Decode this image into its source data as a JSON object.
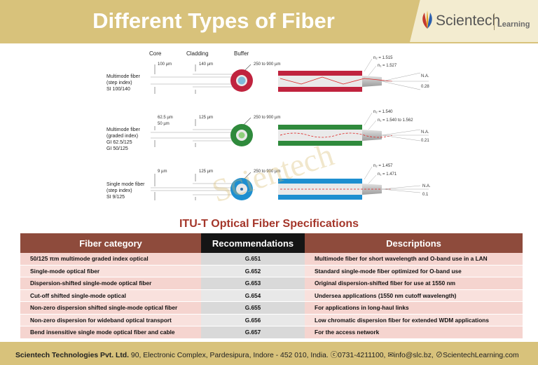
{
  "header": {
    "title": "Different Types of Fiber",
    "logo_name": "Scientech",
    "logo_sub": "Learning"
  },
  "diagram": {
    "col_core": "Core",
    "col_cladding": "Cladding",
    "col_buffer": "Buffer",
    "fibers": [
      {
        "name_lines": [
          "Multimode fiber",
          "(step index)",
          "SI 100/140"
        ],
        "core_dim": "100 µm",
        "cladding_dim": "140 µm",
        "buffer_dim": "250 to 900 µm",
        "n2": "n₂ = 1.515",
        "n1": "n₁ = 1.527",
        "na_label": "N.A.",
        "na_value": "0.28",
        "color": "#c0233e"
      },
      {
        "name_lines": [
          "Multimode fiber",
          "(graded index)",
          "GI 62.5/125",
          "GI 50/125"
        ],
        "core_dim": "62.5 µm",
        "core_dim2": "50 µm",
        "cladding_dim": "125 µm",
        "buffer_dim": "250 to 900 µm",
        "n2": "n₂ = 1.540",
        "n1": "n₁ = 1.540 to 1.562",
        "na_label": "N.A.",
        "na_value": "0.21",
        "color": "#2f8a3c"
      },
      {
        "name_lines": [
          "Single mode fiber",
          "(step index)",
          "SI 9/125"
        ],
        "core_dim": "9 µm",
        "cladding_dim": "125 µm",
        "buffer_dim": "250 to 900 µm",
        "n2": "n₂ = 1.457",
        "n1": "n₁ = 1.471",
        "na_label": "N.A.",
        "na_value": "0.1",
        "color": "#1e8fd0"
      }
    ]
  },
  "watermark": "Scientech",
  "spec": {
    "title": "ITU-T Optical Fiber Specifications",
    "headers": [
      "Fiber category",
      "Recommendations",
      "Descriptions"
    ],
    "rows": [
      [
        "50/125 πm multimode graded index optical",
        "G.651",
        "Multimode fiber for short wavelength and O-band use in a LAN"
      ],
      [
        "Single-mode optical fiber",
        "G.652",
        "Standard single-mode fiber optimized for O-band use"
      ],
      [
        "Dispersion-shifted single-mode optical fiber",
        "G.653",
        "Original dispersion-shifted fiber for use at 1550 nm"
      ],
      [
        "Cut-off shifted single-mode optical",
        "G.654",
        "Undersea applications (1550 nm cutoff wavelength)"
      ],
      [
        "Non-zero dispersion shifted single-mode optical fiber",
        "G.655",
        "For applications in long-haul links"
      ],
      [
        "Non-zero dispersion for wideband optical transport",
        "G.656",
        "Low chromatic dispersion fiber for extended WDM applications"
      ],
      [
        "Bend insensitive single mode optical fiber and cable",
        "G.657",
        "For the access network"
      ]
    ]
  },
  "footer": {
    "company": "Scientech Technologies Pvt. Ltd.",
    "address": " 90, Electronic Complex, Pardesipura, Indore - 452 010, India.",
    "phone": "ⓒ0731-4211100,",
    "email": "✉info@slc.bz,",
    "web": "⊘ScientechLearning.com"
  },
  "colors": {
    "banner": "#d8c27b",
    "table_header": "#8e4b3c",
    "table_header_mid": "#151515",
    "spec_title": "#a4362a"
  }
}
